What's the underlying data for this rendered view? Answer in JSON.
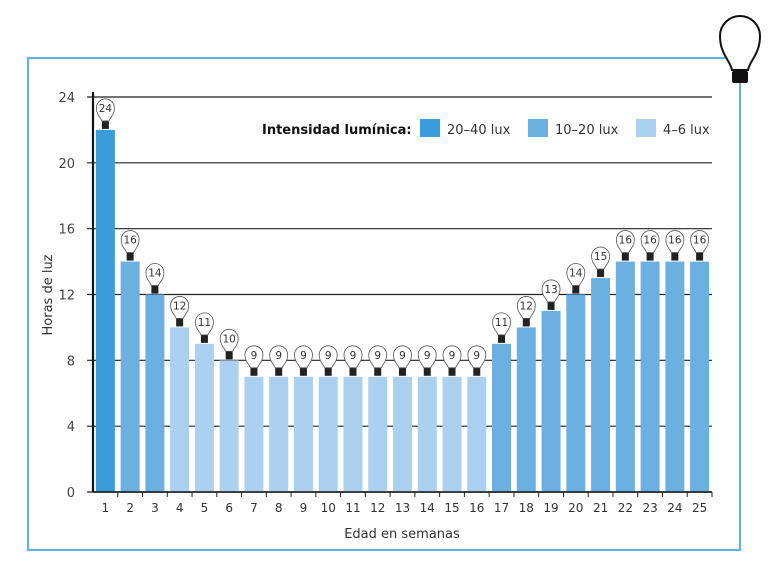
{
  "chart_data": {
    "type": "bar",
    "xlabel": "Edad en semanas",
    "ylabel": "Horas de luz",
    "ylim": [
      0,
      24
    ],
    "yticks": [
      0,
      4,
      8,
      12,
      16,
      20,
      24
    ],
    "grid": "horizontal",
    "legend_placement": "top-right",
    "legend_title": "Intensidad lumínica:",
    "legend": [
      {
        "label": "20–40 lux",
        "color": "#3b9cdb"
      },
      {
        "label": "10–20 lux",
        "color": "#6cb0e2"
      },
      {
        "label": "4–6 lux",
        "color": "#abd0f0"
      }
    ],
    "categories": [
      "1",
      "2",
      "3",
      "4",
      "5",
      "6",
      "7",
      "8",
      "9",
      "10",
      "11",
      "12",
      "13",
      "14",
      "15",
      "16",
      "17",
      "18",
      "19",
      "20",
      "21",
      "22",
      "23",
      "24",
      "25"
    ],
    "values": [
      22,
      14,
      12,
      10,
      9,
      8,
      7,
      7,
      7,
      7,
      7,
      7,
      7,
      7,
      7,
      7,
      9,
      10,
      11,
      12,
      13,
      14,
      14,
      14,
      14
    ],
    "bulb_labels": [
      "24",
      "16",
      "14",
      "12",
      "11",
      "10",
      "9",
      "9",
      "9",
      "9",
      "9",
      "9",
      "9",
      "9",
      "9",
      "9",
      "11",
      "12",
      "13",
      "14",
      "15",
      "16",
      "16",
      "16",
      "16"
    ],
    "intensity_class": [
      0,
      1,
      1,
      2,
      2,
      2,
      2,
      2,
      2,
      2,
      2,
      2,
      2,
      2,
      2,
      2,
      1,
      1,
      1,
      1,
      1,
      1,
      1,
      1,
      1
    ]
  },
  "decor": {
    "corner_icon": "light-bulb-icon"
  }
}
